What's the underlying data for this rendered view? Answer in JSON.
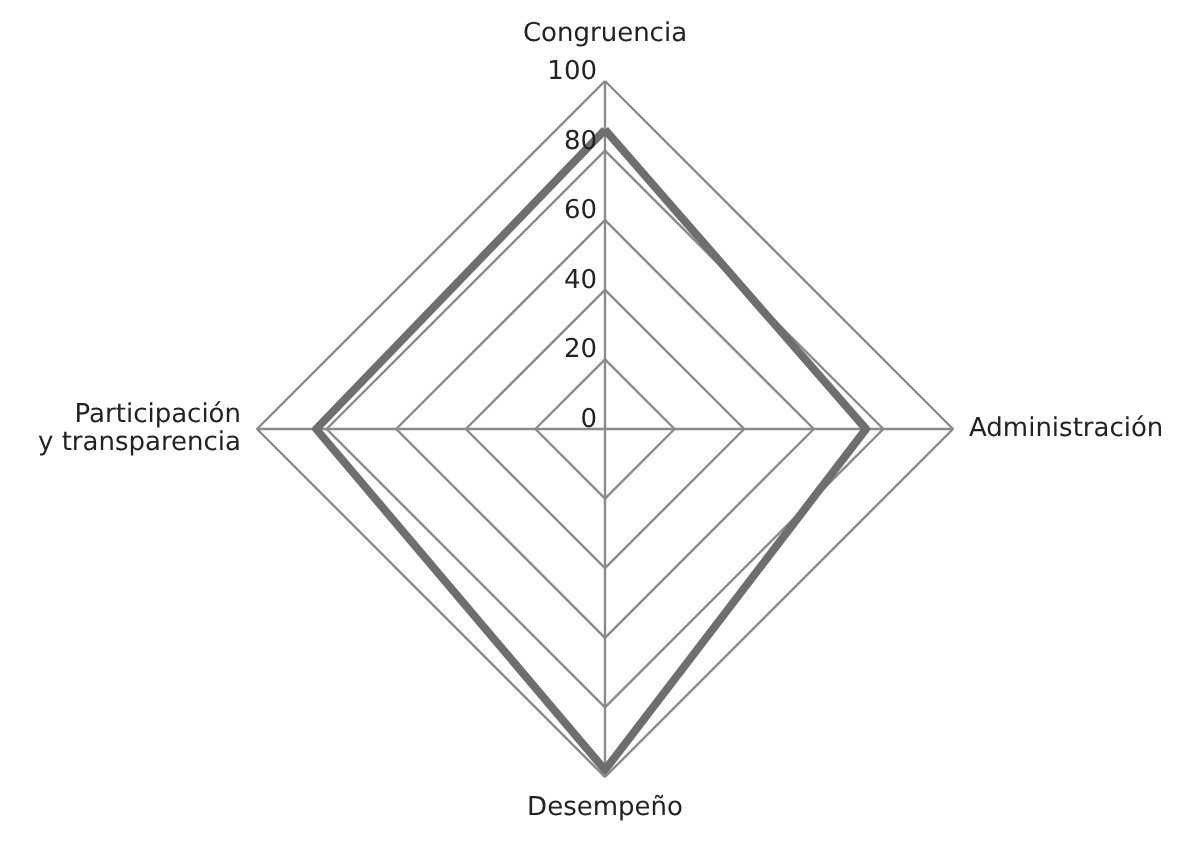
{
  "chart_data": {
    "type": "radar",
    "categories": [
      "Congruencia",
      "Administración",
      "Desempeño",
      "Participación\ny transparencia"
    ],
    "series": [
      {
        "color": "#6e6e6e",
        "values": [
          86,
          75,
          98,
          83
        ]
      }
    ],
    "ylim": [
      0,
      100
    ],
    "yticks": [
      0,
      20,
      40,
      60,
      80,
      100
    ],
    "grid": true
  }
}
